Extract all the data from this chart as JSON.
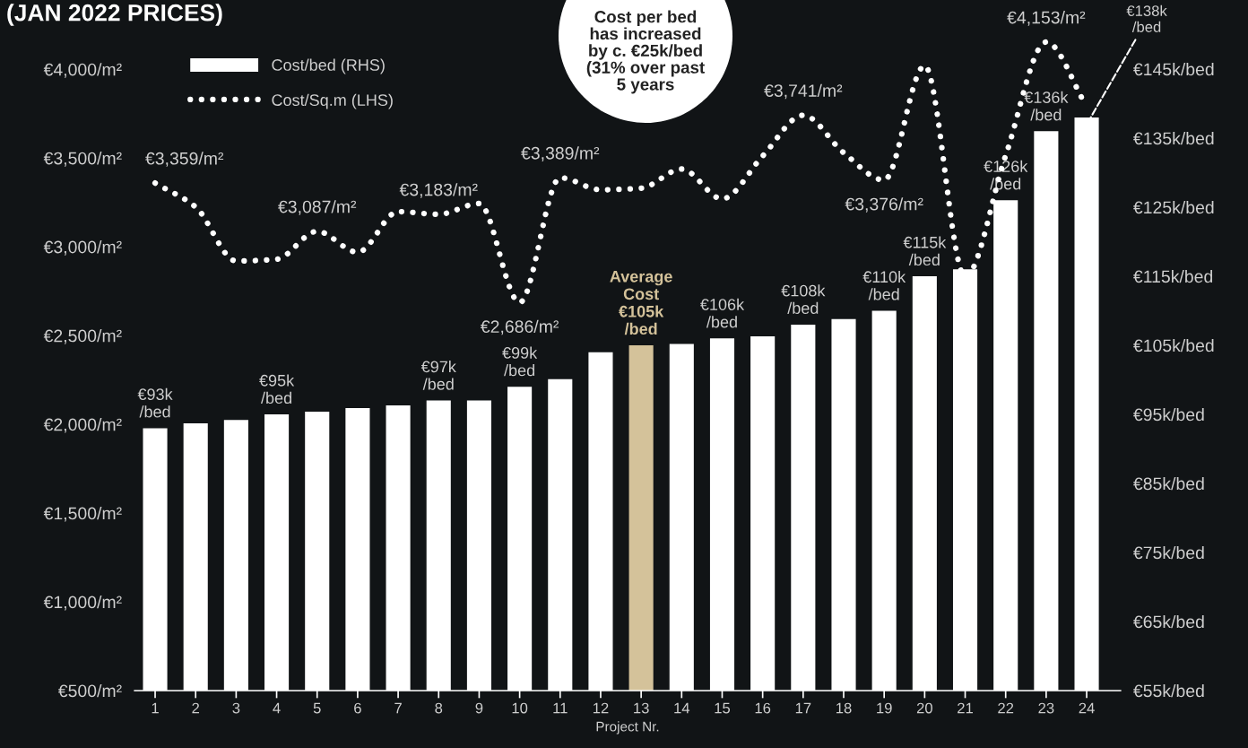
{
  "chart_data": {
    "type": "bar",
    "title": "(JAN 2022 PRICES)",
    "xlabel": "Project Nr.",
    "categories": [
      "1",
      "2",
      "3",
      "4",
      "5",
      "6",
      "7",
      "8",
      "9",
      "10",
      "11",
      "12",
      "13",
      "14",
      "15",
      "16",
      "17",
      "18",
      "19",
      "20",
      "21",
      "22",
      "23",
      "24"
    ],
    "series": [
      {
        "name": "Cost/bed (RHS)",
        "axis": "y2",
        "values": [
          93,
          93.7,
          94.2,
          95,
          95.4,
          95.9,
          96.3,
          97,
          97,
          99,
          100.1,
          104,
          105,
          105.2,
          106,
          106.3,
          108,
          108.8,
          110,
          115,
          116,
          126,
          136,
          138
        ],
        "colors": [
          "#ffffff",
          "#ffffff",
          "#ffffff",
          "#ffffff",
          "#ffffff",
          "#ffffff",
          "#ffffff",
          "#ffffff",
          "#ffffff",
          "#ffffff",
          "#ffffff",
          "#ffffff",
          "#d4c29a",
          "#ffffff",
          "#ffffff",
          "#ffffff",
          "#ffffff",
          "#ffffff",
          "#ffffff",
          "#ffffff",
          "#ffffff",
          "#ffffff",
          "#ffffff",
          "#ffffff"
        ],
        "value_labels": [
          "€93k\n/bed",
          null,
          null,
          "€95k\n/bed",
          null,
          null,
          null,
          "€97k\n/bed",
          null,
          "€99k\n/bed",
          null,
          null,
          "Average\nCost\n€105k\n/bed",
          null,
          "€106k\n/bed",
          null,
          "€108k\n/bed",
          null,
          "€110k\n/bed",
          "€115k\n/bed",
          null,
          "€126k\n/bed",
          "€136k\n/bed",
          "€138k\n/bed"
        ]
      },
      {
        "name": "Cost/Sq.m (LHS)",
        "type": "line",
        "color": "#ffffff",
        "line_style": "dotted",
        "values": [
          3359,
          3224,
          2920,
          2930,
          3087,
          2969,
          3198,
          3183,
          3244,
          2686,
          3389,
          3321,
          3330,
          3438,
          3270,
          3511,
          3741,
          3530,
          3376,
          4020,
          2831,
          3514,
          4153,
          3790
        ],
        "value_labels": [
          "€3,359/m²",
          null,
          null,
          null,
          "€3,087/m²",
          null,
          null,
          "€3,183/m²",
          null,
          "€2,686/m²",
          "€3,389/m²",
          null,
          null,
          null,
          null,
          null,
          "€3,741/m²",
          null,
          "€3,376/m²",
          null,
          null,
          null,
          "€4,153/m²",
          null
        ]
      }
    ],
    "ylim": [
      500,
      4390
    ],
    "yticks": [
      {
        "value": 500,
        "label": "€500/m²"
      },
      {
        "value": 1000,
        "label": "€1,000/m²"
      },
      {
        "value": 1500,
        "label": "€1,500/m²"
      },
      {
        "value": 2000,
        "label": "€2,000/m²"
      },
      {
        "value": 2500,
        "label": "€2,500/m²"
      },
      {
        "value": 3000,
        "label": "€3,000/m²"
      },
      {
        "value": 3500,
        "label": "€3,500/m²"
      },
      {
        "value": 4000,
        "label": "€4,000/m²"
      }
    ],
    "y2lim": [
      55,
      155
    ],
    "y2ticks": [
      {
        "value": 55,
        "label": "€55k/bed"
      },
      {
        "value": 65,
        "label": "€65k/bed"
      },
      {
        "value": 75,
        "label": "€75k/bed"
      },
      {
        "value": 85,
        "label": "€85k/bed"
      },
      {
        "value": 95,
        "label": "€95k/bed"
      },
      {
        "value": 105,
        "label": "€105k/bed"
      },
      {
        "value": 115,
        "label": "€115k/bed"
      },
      {
        "value": 125,
        "label": "€125k/bed"
      },
      {
        "value": 135,
        "label": "€135k/bed"
      },
      {
        "value": 145,
        "label": "€145k/bed"
      }
    ],
    "annotations": [
      "Cost per bed\nhas increased\nby c. €25k/bed\n(31% over past\n5 years"
    ],
    "legend": "top left",
    "grid": false
  }
}
